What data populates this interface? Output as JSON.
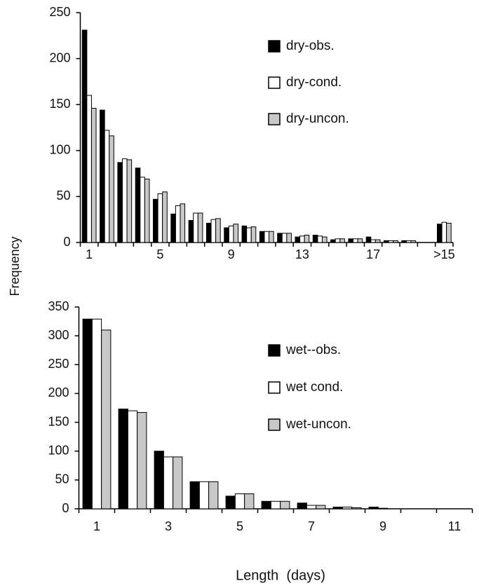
{
  "chart_data": [
    {
      "type": "bar",
      "categories": [
        "1",
        null,
        null,
        null,
        "5",
        null,
        null,
        null,
        "9",
        null,
        null,
        null,
        "13",
        null,
        null,
        null,
        "17",
        null,
        null,
        null,
        ">15"
      ],
      "series": [
        {
          "name": "dry-obs.",
          "color": "#000000",
          "values": [
            231,
            144,
            87,
            81,
            47,
            31,
            24,
            21,
            16,
            18,
            12,
            10,
            6,
            8,
            3,
            4,
            6,
            2,
            2,
            0,
            20
          ]
        },
        {
          "name": "dry-cond.",
          "color": "#ffffff",
          "values": [
            160,
            122,
            91,
            71,
            53,
            40,
            32,
            25,
            18,
            16,
            12,
            10,
            7,
            7,
            4,
            4,
            3,
            2,
            2,
            0,
            22
          ]
        },
        {
          "name": "dry-uncon.",
          "color": "#c8c8c8",
          "values": [
            146,
            116,
            90,
            69,
            55,
            42,
            32,
            26,
            20,
            17,
            12,
            10,
            8,
            6,
            4,
            4,
            3,
            2,
            2,
            0,
            21
          ]
        }
      ],
      "ylim": [
        0,
        250
      ],
      "yticks": [
        0,
        50,
        100,
        150,
        200,
        250
      ],
      "grid": false,
      "legend": "upper right"
    },
    {
      "type": "bar",
      "categories": [
        "1",
        null,
        "3",
        null,
        "5",
        null,
        "7",
        null,
        "9",
        null,
        "11"
      ],
      "series": [
        {
          "name": "wet--obs.",
          "color": "#000000",
          "values": [
            329,
            173,
            100,
            47,
            22,
            13,
            10,
            3,
            3,
            0,
            0
          ]
        },
        {
          "name": "wet cond.",
          "color": "#ffffff",
          "values": [
            329,
            170,
            90,
            47,
            26,
            13,
            6,
            3,
            1,
            0,
            0
          ]
        },
        {
          "name": "wet-uncon.",
          "color": "#c8c8c8",
          "values": [
            310,
            167,
            90,
            47,
            26,
            13,
            6,
            2,
            0,
            0,
            0
          ]
        }
      ],
      "ylim": [
        0,
        350
      ],
      "yticks": [
        0,
        50,
        100,
        150,
        200,
        250,
        300,
        350
      ],
      "grid": false,
      "legend": "center right"
    }
  ],
  "y_label": "Frequency",
  "x_label": "Length  (days)"
}
